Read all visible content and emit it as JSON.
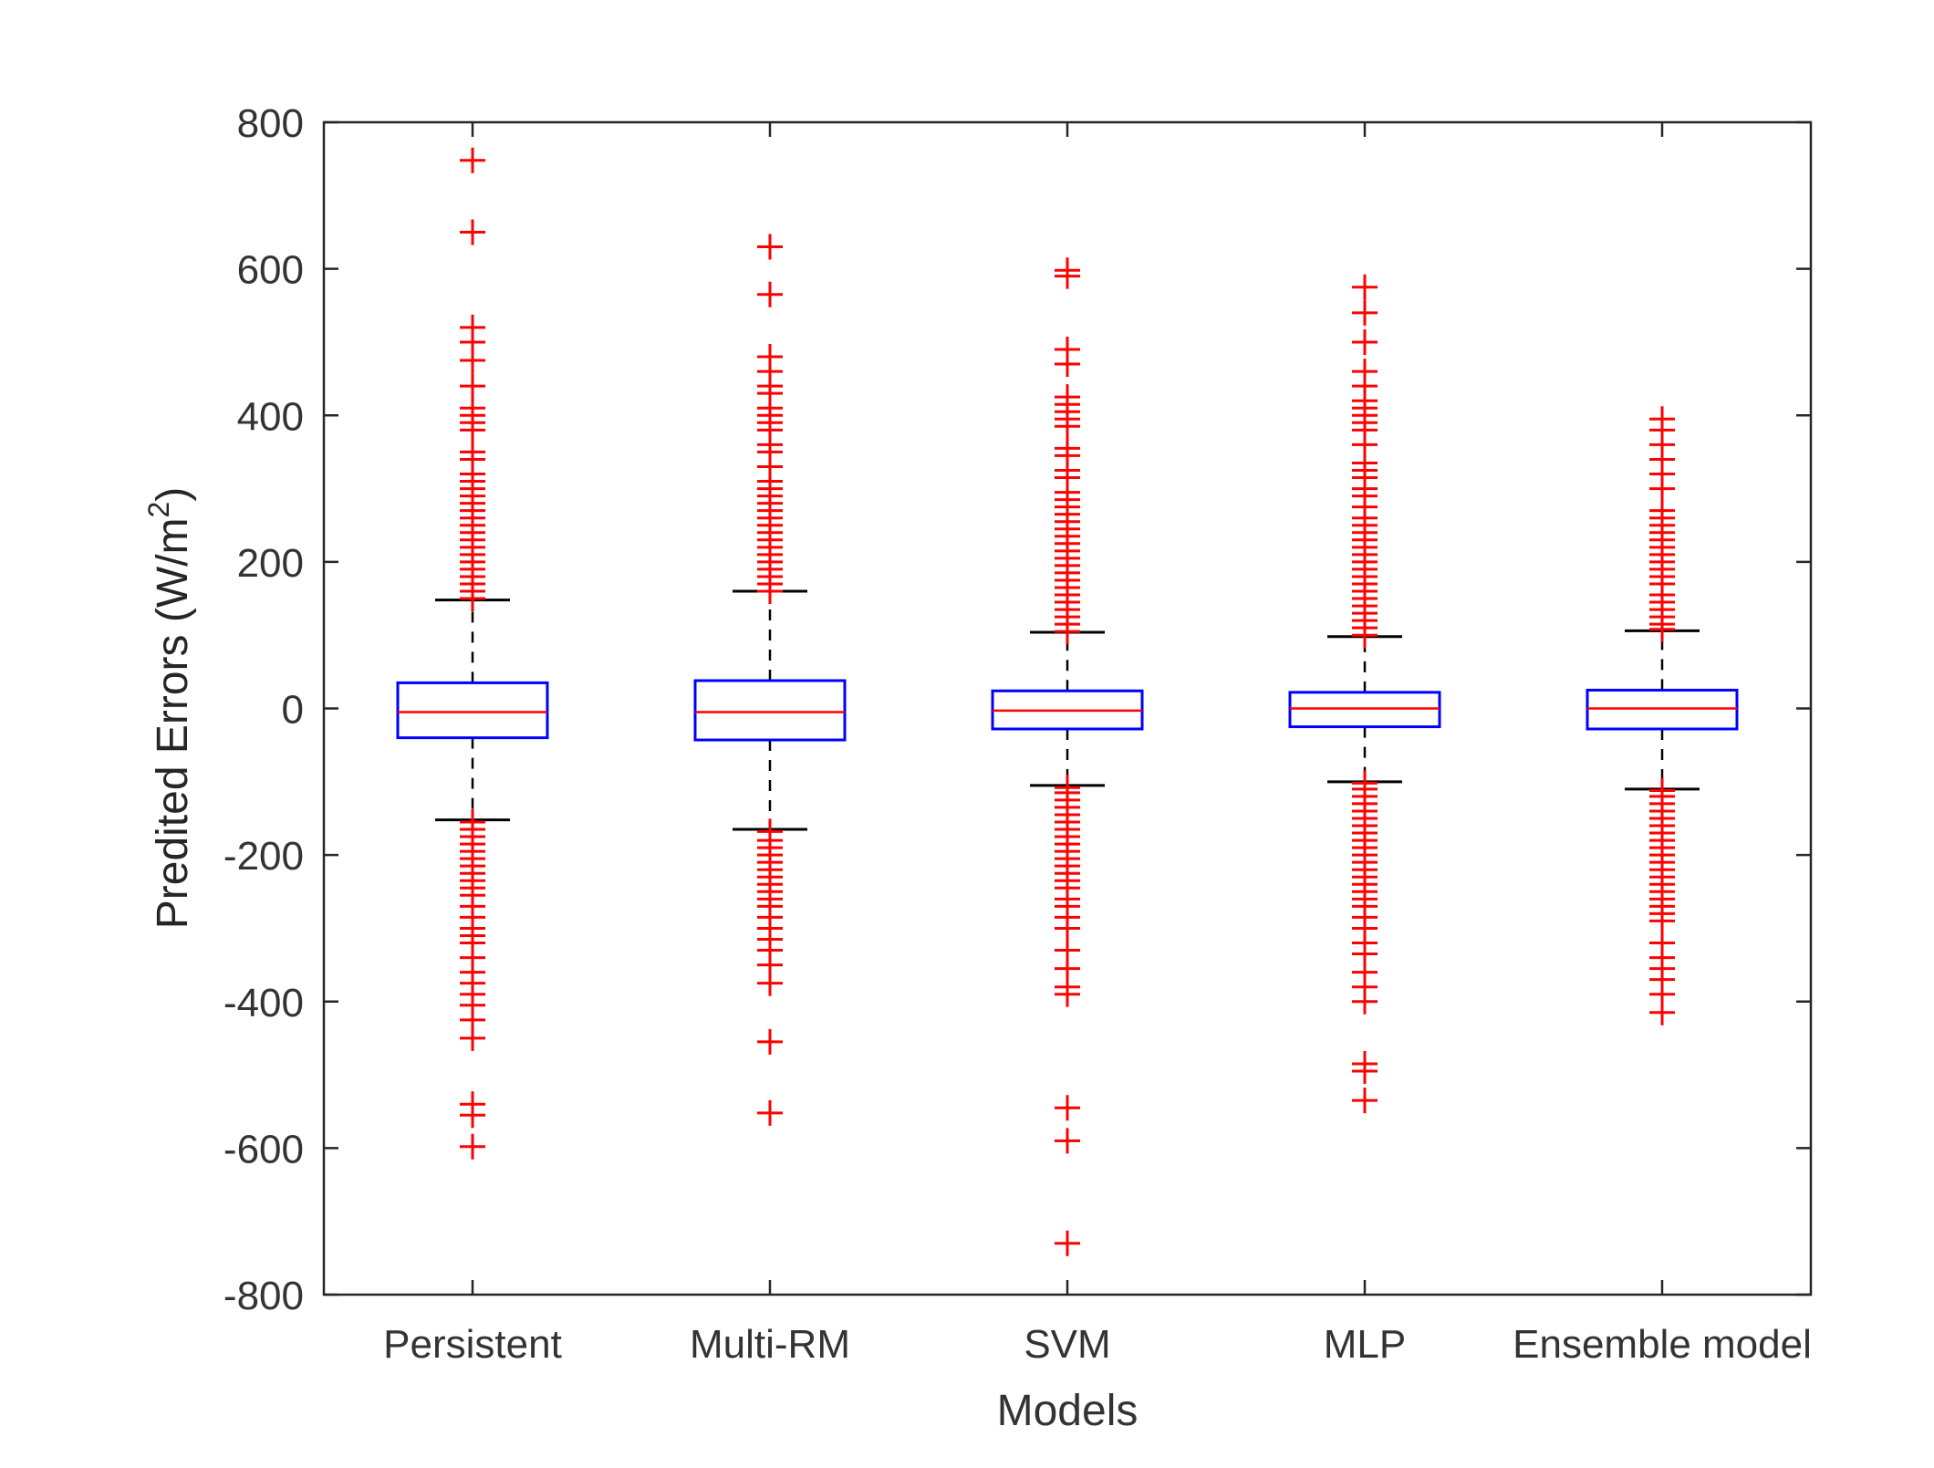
{
  "chart_data": {
    "type": "boxplot",
    "title": "",
    "xlabel": "Models",
    "ylabel_main": "Predited Errors (W/m",
    "ylabel_sup": "2",
    "ylabel_end": ")",
    "ylim": [
      -800,
      800
    ],
    "yticks": [
      -800,
      -600,
      -400,
      -200,
      0,
      200,
      400,
      600,
      800
    ],
    "categories": [
      "Persistent",
      "Multi-RM",
      "SVM",
      "MLP",
      "Ensemble model"
    ],
    "boxes": [
      {
        "name": "Persistent",
        "whisker_low": -152,
        "q1": -40,
        "median": -5,
        "q3": 35,
        "whisker_high": 148,
        "outliers_high": [
          150,
          160,
          170,
          180,
          190,
          200,
          210,
          220,
          230,
          240,
          250,
          260,
          270,
          280,
          290,
          300,
          310,
          320,
          340,
          350,
          380,
          390,
          400,
          410,
          440,
          475,
          500,
          520,
          650,
          748
        ],
        "outliers_low": [
          -155,
          -165,
          -175,
          -185,
          -195,
          -205,
          -215,
          -225,
          -235,
          -245,
          -255,
          -270,
          -285,
          -300,
          -310,
          -320,
          -340,
          -360,
          -375,
          -390,
          -405,
          -425,
          -450,
          -540,
          -555,
          -598
        ]
      },
      {
        "name": "Multi-RM",
        "whisker_low": -165,
        "q1": -43,
        "median": -5,
        "q3": 38,
        "whisker_high": 160,
        "outliers_high": [
          160,
          170,
          180,
          190,
          200,
          210,
          220,
          230,
          240,
          250,
          260,
          270,
          280,
          290,
          300,
          310,
          330,
          350,
          360,
          380,
          390,
          400,
          410,
          430,
          440,
          460,
          480,
          565,
          630
        ],
        "outliers_low": [
          -168,
          -180,
          -190,
          -200,
          -210,
          -220,
          -230,
          -240,
          -250,
          -260,
          -270,
          -285,
          -300,
          -315,
          -330,
          -350,
          -375,
          -455,
          -552
        ]
      },
      {
        "name": "SVM",
        "whisker_low": -105,
        "q1": -28,
        "median": -3,
        "q3": 24,
        "whisker_high": 104,
        "outliers_high": [
          105,
          115,
          125,
          135,
          145,
          155,
          165,
          175,
          185,
          195,
          205,
          215,
          225,
          235,
          245,
          255,
          265,
          275,
          285,
          295,
          315,
          325,
          345,
          355,
          385,
          395,
          405,
          415,
          425,
          470,
          490,
          590,
          598
        ],
        "outliers_low": [
          -108,
          -115,
          -125,
          -135,
          -145,
          -155,
          -165,
          -175,
          -185,
          -195,
          -205,
          -215,
          -225,
          -235,
          -245,
          -260,
          -270,
          -285,
          -300,
          -330,
          -355,
          -380,
          -390,
          -545,
          -590,
          -730
        ]
      },
      {
        "name": "MLP",
        "whisker_low": -100,
        "q1": -25,
        "median": 0,
        "q3": 22,
        "whisker_high": 98,
        "outliers_high": [
          100,
          110,
          120,
          130,
          140,
          150,
          160,
          170,
          180,
          190,
          200,
          210,
          220,
          230,
          240,
          250,
          260,
          275,
          290,
          300,
          315,
          325,
          335,
          360,
          380,
          390,
          400,
          410,
          420,
          440,
          460,
          500,
          540,
          575
        ],
        "outliers_low": [
          -102,
          -110,
          -120,
          -130,
          -140,
          -150,
          -160,
          -170,
          -180,
          -190,
          -200,
          -210,
          -220,
          -230,
          -240,
          -250,
          -260,
          -270,
          -285,
          -300,
          -320,
          -335,
          -360,
          -380,
          -400,
          -485,
          -495,
          -535
        ]
      },
      {
        "name": "Ensemble model",
        "whisker_low": -110,
        "q1": -28,
        "median": 0,
        "q3": 25,
        "whisker_high": 106,
        "outliers_high": [
          108,
          115,
          125,
          135,
          145,
          155,
          170,
          180,
          190,
          200,
          210,
          220,
          230,
          240,
          250,
          260,
          270,
          300,
          320,
          340,
          360,
          380,
          395
        ],
        "outliers_low": [
          -112,
          -120,
          -130,
          -140,
          -150,
          -160,
          -170,
          -180,
          -190,
          -200,
          -210,
          -220,
          -230,
          -240,
          -250,
          -260,
          -270,
          -280,
          -290,
          -320,
          -340,
          -355,
          -370,
          -390,
          -415
        ]
      }
    ],
    "colors": {
      "box": "#0000ff",
      "median": "#ff0000",
      "outlier": "#ff0000",
      "whisker": "#000000",
      "axis": "#262626",
      "text": "#333333"
    }
  }
}
